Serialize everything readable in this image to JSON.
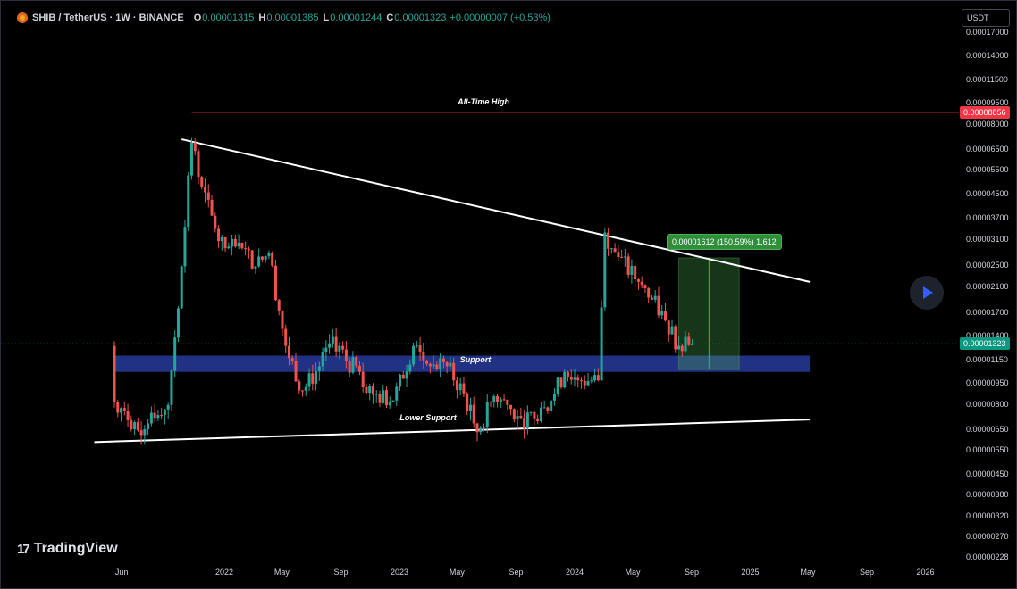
{
  "header": {
    "symbol_title": "SHIB / TetherUS · 1W · BINANCE",
    "o_label": "O",
    "o_value": "0.00001315",
    "h_label": "H",
    "h_value": "0.00001385",
    "l_label": "L",
    "l_value": "0.00001244",
    "c_label": "C",
    "c_value": "0.00001323",
    "change": "+0.00000007 (+0.53%)"
  },
  "currency_button": "USDT",
  "branding": {
    "logo_text": "TradingView"
  },
  "colors": {
    "up": "#26a69a",
    "down": "#ef5350",
    "ath": "#f23645",
    "support_zone": "#2a3fa8",
    "measure": "#4caf50",
    "trendline": "#ffffff",
    "last_price": "#089981"
  },
  "chart_data": {
    "type": "candlestick",
    "symbol": "SHIB/USDT",
    "timeframe": "1W",
    "y_scale": "log",
    "grid": false,
    "y_tick_labels": [
      "0.00017000",
      "0.00014000",
      "0.00011500",
      "0.00009500",
      "0.00008000",
      "0.00006500",
      "0.00005500",
      "0.00004500",
      "0.00003700",
      "0.00003100",
      "0.00002500",
      "0.00002100",
      "0.00001700",
      "0.00001400",
      "0.00001150",
      "0.00000950",
      "0.00000800",
      "0.00000650",
      "0.00000550",
      "0.00000450",
      "0.00000380",
      "0.00000320",
      "0.00000270",
      "0.00000228"
    ],
    "x_tick_labels": [
      "Jun",
      "2022",
      "May",
      "Sep",
      "2023",
      "May",
      "Sep",
      "2024",
      "May",
      "Sep",
      "2025",
      "May",
      "Sep",
      "2026"
    ],
    "price_series": [
      {
        "date": "2021-05-10",
        "close": 1.3e-05
      },
      {
        "date": "2021-05-17",
        "close": 8.2e-06
      },
      {
        "date": "2021-06-07",
        "close": 7.6e-06
      },
      {
        "date": "2021-07-05",
        "close": 6.5e-06
      },
      {
        "date": "2021-08-02",
        "close": 7.5e-06
      },
      {
        "date": "2021-09-06",
        "close": 8e-06
      },
      {
        "date": "2021-10-04",
        "close": 2.5e-05
      },
      {
        "date": "2021-10-25",
        "close": 6.9e-05
      },
      {
        "date": "2021-11-15",
        "close": 4.8e-05
      },
      {
        "date": "2021-12-13",
        "close": 3.4e-05
      },
      {
        "date": "2022-01-03",
        "close": 2.9e-05
      },
      {
        "date": "2022-02-07",
        "close": 2.9e-05
      },
      {
        "date": "2022-03-07",
        "close": 2.5e-05
      },
      {
        "date": "2022-04-04",
        "close": 2.8e-05
      },
      {
        "date": "2022-05-09",
        "close": 1.3e-05
      },
      {
        "date": "2022-06-13",
        "close": 9e-06
      },
      {
        "date": "2022-07-18",
        "close": 1.1e-05
      },
      {
        "date": "2022-08-15",
        "close": 1.4e-05
      },
      {
        "date": "2022-09-12",
        "close": 1.15e-05
      },
      {
        "date": "2022-10-10",
        "close": 1.05e-05
      },
      {
        "date": "2022-11-07",
        "close": 8.7e-06
      },
      {
        "date": "2022-12-19",
        "close": 8.3e-06
      },
      {
        "date": "2023-01-30",
        "close": 1.3e-05
      },
      {
        "date": "2023-03-06",
        "close": 1.1e-05
      },
      {
        "date": "2023-04-10",
        "close": 1.1e-05
      },
      {
        "date": "2023-05-15",
        "close": 8.8e-06
      },
      {
        "date": "2023-06-12",
        "close": 6.4e-06
      },
      {
        "date": "2023-07-17",
        "close": 8.6e-06
      },
      {
        "date": "2023-08-14",
        "close": 8e-06
      },
      {
        "date": "2023-09-11",
        "close": 7.2e-06
      },
      {
        "date": "2023-10-16",
        "close": 7e-06
      },
      {
        "date": "2023-11-13",
        "close": 8.3e-06
      },
      {
        "date": "2023-12-11",
        "close": 1.05e-05
      },
      {
        "date": "2024-01-08",
        "close": 9.8e-06
      },
      {
        "date": "2024-02-19",
        "close": 9.8e-06
      },
      {
        "date": "2024-03-04",
        "close": 3.3e-05
      },
      {
        "date": "2024-04-01",
        "close": 2.7e-05
      },
      {
        "date": "2024-05-13",
        "close": 2.2e-05
      },
      {
        "date": "2024-06-10",
        "close": 1.9e-05
      },
      {
        "date": "2024-07-08",
        "close": 1.6e-05
      },
      {
        "date": "2024-08-05",
        "close": 1.3e-05
      },
      {
        "date": "2024-08-19",
        "close": 1.4e-05
      },
      {
        "date": "2024-09-02",
        "close": 1.323e-05
      }
    ],
    "ohlc_last": {
      "open": 1.315e-05,
      "high": 1.385e-05,
      "low": 1.244e-05,
      "close": 1.323e-05,
      "change": 7e-08,
      "change_pct": 0.53
    },
    "last_price_tag": "0.00001323",
    "annotations": [
      {
        "type": "horizontal_line",
        "label": "All-Time High",
        "price": 8.856e-05,
        "price_tag": "0.00008856",
        "color": "#f23645"
      },
      {
        "type": "trendline",
        "label": "",
        "from": {
          "date": "2021-10-04",
          "price": 7.1e-05
        },
        "to": {
          "date": "2025-05-05",
          "price": 2.2e-05
        }
      },
      {
        "type": "trendline",
        "label": "Lower Support",
        "from": {
          "date": "2021-04-05",
          "price": 5.9e-06
        },
        "to": {
          "date": "2025-05-05",
          "price": 7.1e-06
        }
      },
      {
        "type": "zone",
        "label": "Support",
        "price_top": 1.2e-05,
        "price_bottom": 1.05e-05,
        "from": "2021-05-17",
        "to": "2025-05-05"
      },
      {
        "type": "price_range",
        "label": "0.00001612 (150.59%) 1,612",
        "from_price": 1.07e-05,
        "to_price": 2.68e-05,
        "from_date": "2024-08-05",
        "to_date": "2024-12-09"
      }
    ]
  }
}
